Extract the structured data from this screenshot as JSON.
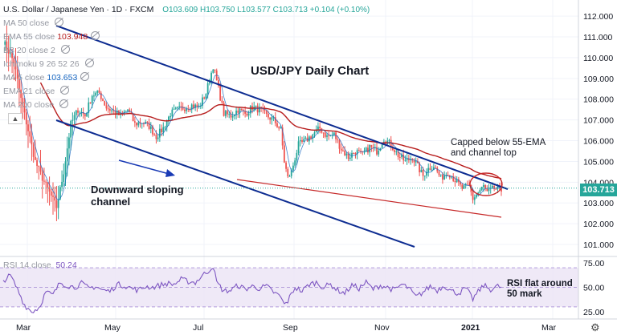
{
  "header": {
    "symbol": "U.S. Dollar / Japanese Yen · 1D · FXCM",
    "ohlc": "O103.609 H103.750 L103.577 C103.713 +0.104 (+0.10%)"
  },
  "indicators": [
    {
      "label": "MA 50 close",
      "value": ""
    },
    {
      "label": "EMA 55 close",
      "value": "103.948"
    },
    {
      "label": "BB 20 close 2",
      "value": ""
    },
    {
      "label": "Ichimoku 9 26 52 26",
      "value": ""
    },
    {
      "label": "MA 5 close",
      "value": "103.653"
    },
    {
      "label": "EMA 21 close",
      "value": ""
    },
    {
      "label": "MA 200 close",
      "value": ""
    }
  ],
  "rsi": {
    "label": "RSI 14 close",
    "value": "50.24"
  },
  "annotations": {
    "title": "USD/JPY Daily Chart",
    "capped": [
      "Capped below 55-EMA",
      "and channel top"
    ],
    "channel": [
      "Downward sloping",
      "channel"
    ],
    "rsi_note": [
      "RSI flat around",
      "50 mark"
    ]
  },
  "price_tag": "103.713",
  "colors": {
    "up": "#26a69a",
    "down": "#ef5350",
    "ema": "#b71c1c",
    "ma5": "#1565c0",
    "channel": "#0d2c91",
    "rsi": "#7e57c2"
  },
  "chart_data": {
    "type": "candlestick",
    "title": "USD/JPY Daily Chart",
    "x_labels": [
      "Mar",
      "May",
      "Jul",
      "Sep",
      "Nov",
      "2021",
      "Mar"
    ],
    "y_ticks": [
      "112.000",
      "111.000",
      "110.000",
      "109.000",
      "108.000",
      "107.000",
      "106.000",
      "105.000",
      "104.000",
      "103.000",
      "102.000",
      "101.000"
    ],
    "rsi_ticks": [
      "75.00",
      "50.00",
      "25.00"
    ],
    "ylim": [
      100.5,
      112.7
    ],
    "rsi_ylim": [
      20,
      80
    ],
    "approx_close_path": [
      [
        0,
        110.8
      ],
      [
        6,
        109.8
      ],
      [
        10,
        108.0
      ],
      [
        14,
        106.5
      ],
      [
        18,
        105.0
      ],
      [
        22,
        104.2
      ],
      [
        26,
        103.5
      ],
      [
        30,
        102.8
      ],
      [
        34,
        104.5
      ],
      [
        38,
        106.8
      ],
      [
        42,
        107.5
      ],
      [
        46,
        107.2
      ],
      [
        50,
        108.2
      ],
      [
        54,
        108.3
      ],
      [
        58,
        107.6
      ],
      [
        62,
        107.4
      ],
      [
        66,
        107.2
      ],
      [
        70,
        107.5
      ],
      [
        74,
        106.8
      ],
      [
        78,
        106.9
      ],
      [
        82,
        106.7
      ],
      [
        86,
        106.2
      ],
      [
        90,
        106.6
      ],
      [
        94,
        107.3
      ],
      [
        98,
        107.5
      ],
      [
        102,
        107.6
      ],
      [
        106,
        107.7
      ],
      [
        110,
        107.6
      ],
      [
        114,
        108.3
      ],
      [
        118,
        109.6
      ],
      [
        121,
        108.5
      ],
      [
        124,
        107.3
      ],
      [
        128,
        107.2
      ],
      [
        132,
        107.5
      ],
      [
        136,
        107.3
      ],
      [
        140,
        107.6
      ],
      [
        144,
        107.5
      ],
      [
        148,
        107.2
      ],
      [
        152,
        107.0
      ],
      [
        156,
        106.5
      ],
      [
        158,
        105.0
      ],
      [
        160,
        104.2
      ],
      [
        162,
        104.5
      ],
      [
        166,
        105.8
      ],
      [
        170,
        106.0
      ],
      [
        174,
        106.3
      ],
      [
        178,
        106.6
      ],
      [
        182,
        106.2
      ],
      [
        186,
        106.3
      ],
      [
        190,
        105.6
      ],
      [
        194,
        105.2
      ],
      [
        198,
        105.5
      ],
      [
        202,
        105.3
      ],
      [
        206,
        105.7
      ],
      [
        210,
        105.5
      ],
      [
        214,
        106.1
      ],
      [
        218,
        105.8
      ],
      [
        222,
        105.3
      ],
      [
        226,
        105.0
      ],
      [
        230,
        105.2
      ],
      [
        234,
        104.6
      ],
      [
        236,
        104.3
      ],
      [
        238,
        104.6
      ],
      [
        242,
        104.8
      ],
      [
        246,
        104.2
      ],
      [
        250,
        104.5
      ],
      [
        254,
        104.1
      ],
      [
        258,
        103.7
      ],
      [
        262,
        103.8
      ],
      [
        264,
        103.2
      ],
      [
        266,
        103.4
      ],
      [
        270,
        103.8
      ],
      [
        272,
        103.5
      ],
      [
        276,
        103.7
      ],
      [
        280,
        103.6
      ]
    ],
    "approx_rsi_path": [
      [
        0,
        57
      ],
      [
        4,
        62
      ],
      [
        8,
        48
      ],
      [
        12,
        32
      ],
      [
        16,
        25
      ],
      [
        20,
        29
      ],
      [
        24,
        45
      ],
      [
        28,
        42
      ],
      [
        32,
        55
      ],
      [
        36,
        52
      ],
      [
        40,
        50
      ],
      [
        44,
        54
      ],
      [
        48,
        49
      ],
      [
        52,
        51
      ],
      [
        56,
        47
      ],
      [
        60,
        46
      ],
      [
        64,
        53
      ],
      [
        68,
        52
      ],
      [
        72,
        49
      ],
      [
        76,
        47
      ],
      [
        80,
        51
      ],
      [
        84,
        50
      ],
      [
        88,
        52
      ],
      [
        92,
        54
      ],
      [
        96,
        53
      ],
      [
        100,
        58
      ],
      [
        104,
        56
      ],
      [
        108,
        55
      ],
      [
        112,
        62
      ],
      [
        116,
        68
      ],
      [
        118,
        72
      ],
      [
        120,
        55
      ],
      [
        124,
        46
      ],
      [
        128,
        47
      ],
      [
        132,
        52
      ],
      [
        136,
        48
      ],
      [
        140,
        51
      ],
      [
        144,
        49
      ],
      [
        148,
        51
      ],
      [
        152,
        45
      ],
      [
        156,
        40
      ],
      [
        158,
        32
      ],
      [
        160,
        36
      ],
      [
        164,
        50
      ],
      [
        168,
        46
      ],
      [
        172,
        53
      ],
      [
        176,
        55
      ],
      [
        180,
        50
      ],
      [
        184,
        53
      ],
      [
        188,
        47
      ],
      [
        192,
        44
      ],
      [
        196,
        52
      ],
      [
        200,
        49
      ],
      [
        204,
        55
      ],
      [
        208,
        48
      ],
      [
        212,
        52
      ],
      [
        216,
        50
      ],
      [
        220,
        47
      ],
      [
        224,
        53
      ],
      [
        228,
        49
      ],
      [
        232,
        40
      ],
      [
        236,
        45
      ],
      [
        240,
        51
      ],
      [
        244,
        47
      ],
      [
        248,
        52
      ],
      [
        252,
        46
      ],
      [
        256,
        44
      ],
      [
        260,
        49
      ],
      [
        264,
        38
      ],
      [
        266,
        43
      ],
      [
        270,
        52
      ],
      [
        274,
        48
      ],
      [
        278,
        51
      ],
      [
        280,
        50
      ]
    ]
  }
}
